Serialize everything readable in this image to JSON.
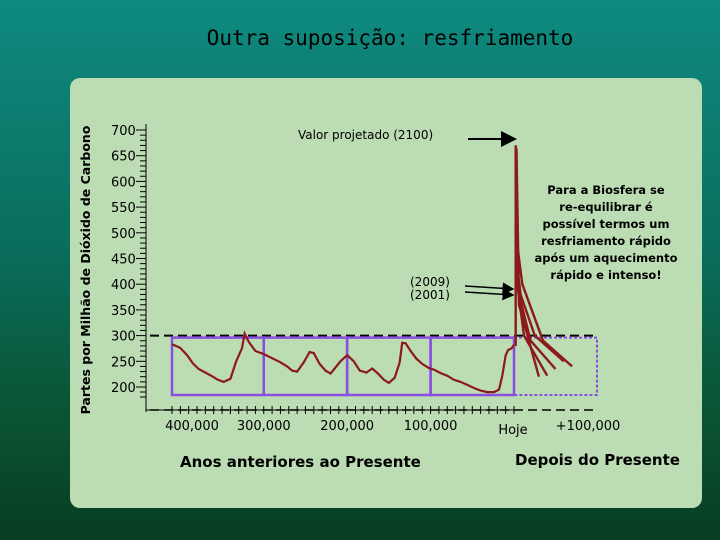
{
  "title": "Outra suposição: resfriamento",
  "chart_data": {
    "type": "line",
    "title": "Outra suposição: resfriamento",
    "ylabel": "Partes por Milhão de Dióxido de Carbono",
    "xlabel_past": "Anos anteriores ao Presente",
    "xlabel_future": "Depois do Presente",
    "ylim": [
      200,
      700
    ],
    "yticks": [
      700,
      650,
      600,
      550,
      500,
      450,
      400,
      350,
      300,
      250,
      200
    ],
    "xticks": [
      {
        "label": "400,000",
        "value": -400000
      },
      {
        "label": "300,000",
        "value": -300000
      },
      {
        "label": "200,000",
        "value": -200000
      },
      {
        "label": "100,000",
        "value": -100000
      },
      {
        "label": "Hoje",
        "value": 0
      },
      {
        "label": "+100,000",
        "value": 100000
      }
    ],
    "baseline_ppm": 300,
    "historical_series": {
      "color": "#8b1a1a",
      "x": [
        -410000,
        -400000,
        -392000,
        -385000,
        -378000,
        -370000,
        -362000,
        -355000,
        -348000,
        -340000,
        -333000,
        -326000,
        -323000,
        -318000,
        -310000,
        -300000,
        -290000,
        -280000,
        -272000,
        -266000,
        -260000,
        -252000,
        -245000,
        -240000,
        -233000,
        -226000,
        -220000,
        -214000,
        -208000,
        -200000,
        -192000,
        -185000,
        -177000,
        -170000,
        -163000,
        -156000,
        -150000,
        -143000,
        -137000,
        -134000,
        -130000,
        -124000,
        -117000,
        -110000,
        -102000,
        -95000,
        -88000,
        -80000,
        -72000,
        -64000,
        -56000,
        -48000,
        -40000,
        -32000,
        -24000,
        -18000,
        -14000,
        -10000,
        -7000,
        -3000,
        0
      ],
      "y": [
        283,
        276,
        262,
        246,
        235,
        228,
        221,
        214,
        210,
        216,
        250,
        276,
        304,
        288,
        270,
        264,
        256,
        248,
        240,
        232,
        230,
        248,
        268,
        266,
        245,
        232,
        226,
        238,
        250,
        262,
        250,
        232,
        228,
        236,
        226,
        214,
        208,
        218,
        248,
        286,
        285,
        270,
        255,
        245,
        237,
        233,
        227,
        222,
        214,
        210,
        204,
        198,
        193,
        190,
        190,
        195,
        222,
        262,
        272,
        275,
        282
      ]
    },
    "projected_series": [
      {
        "x": [
          2000,
          2000,
          3000,
          6000,
          30000
        ],
        "y": [
          280,
          670,
          660,
          360,
          220
        ],
        "color": "#8b1a1a"
      },
      {
        "x": [
          2000,
          4000,
          12000,
          40000
        ],
        "y": [
          420,
          400,
          300,
          222
        ],
        "color": "#8b1a1a"
      },
      {
        "x": [
          2000,
          6000,
          20000,
          50000
        ],
        "y": [
          430,
          380,
          290,
          235
        ],
        "color": "#8b1a1a"
      },
      {
        "x": [
          2000,
          8000,
          25000,
          60000
        ],
        "y": [
          460,
          380,
          300,
          250
        ],
        "color": "#8b1a1a"
      },
      {
        "x": [
          2000,
          10000,
          35000,
          70000
        ],
        "y": [
          500,
          400,
          290,
          240
        ],
        "color": "#8b1a1a"
      }
    ],
    "annotations": {
      "projected_label": "Valor projetado (2100)",
      "year_2009": "(2009)",
      "year_2001": "(2001)",
      "biosphere_note": [
        "Para a Biosfera se",
        "re-equilibrar é",
        "possível termos um",
        "resfriamento rápido",
        "após um aquecimento",
        "rápido e intenso!"
      ]
    },
    "highlight_boxes": [
      {
        "from": -410000,
        "to": -300000
      },
      {
        "from": -300000,
        "to": -200000
      },
      {
        "from": -200000,
        "to": -100000
      },
      {
        "from": -100000,
        "to": 0
      },
      {
        "from": 0,
        "to": 100000
      }
    ],
    "colors": {
      "highlight_box": "#8a4fe0",
      "arrow": "#000000",
      "panel": "#bcdcb4"
    },
    "grid": false,
    "legend": "none"
  }
}
